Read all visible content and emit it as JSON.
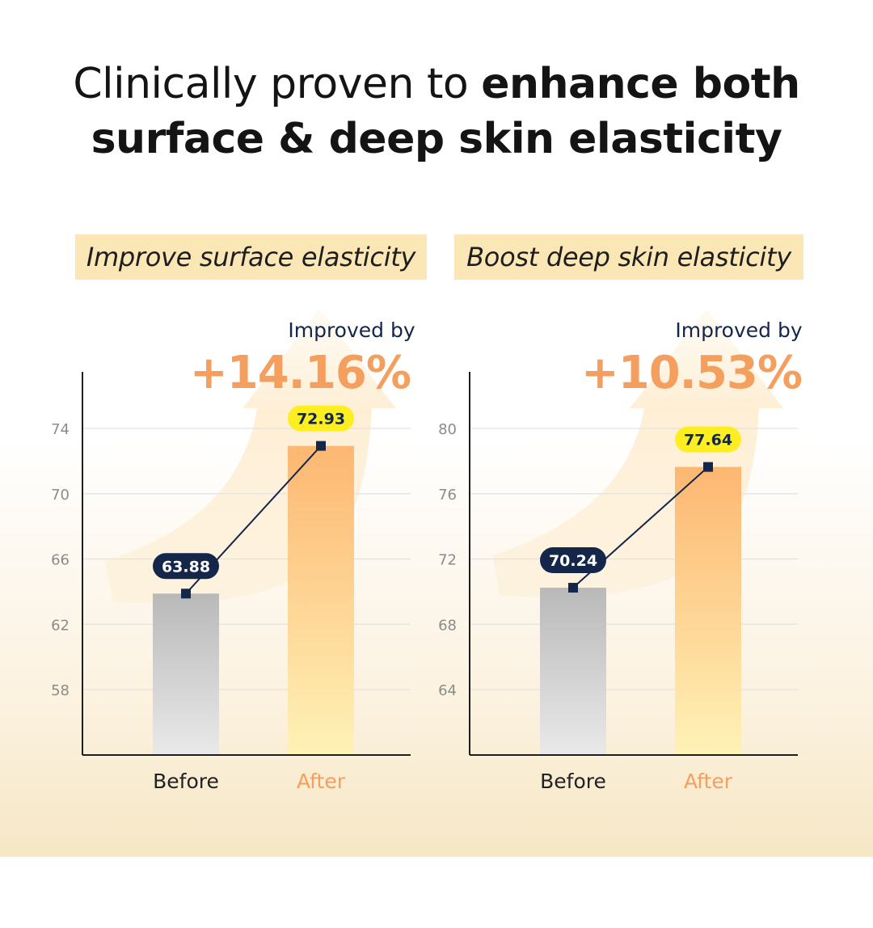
{
  "headline": {
    "line1_regular": "Clinically proven to ",
    "line1_bold": "enhance both",
    "line2_bold": "surface & deep skin elasticity"
  },
  "colors": {
    "before_bar": "#b9b9b9",
    "after_bar": "#fdb772",
    "accent_orange": "#f59f5f",
    "navy": "#14264a",
    "highlight_yellow": "#fcee21"
  },
  "chart_data": [
    {
      "type": "bar",
      "title": "Improve surface elasticity",
      "improvement_label": "Improved by",
      "improvement_value": "+14.16%",
      "categories": [
        "Before",
        "After"
      ],
      "values": [
        63.88,
        72.93
      ],
      "value_labels": [
        "63.88",
        "72.93"
      ],
      "yticks": [
        58,
        62,
        66,
        70,
        74
      ],
      "ylim": [
        54,
        78
      ],
      "grid": true
    },
    {
      "type": "bar",
      "title": "Boost deep skin elasticity",
      "improvement_label": "Improved by",
      "improvement_value": "+10.53%",
      "categories": [
        "Before",
        "After"
      ],
      "values": [
        70.24,
        77.64
      ],
      "value_labels": [
        "70.24",
        "77.64"
      ],
      "yticks": [
        64,
        68,
        72,
        76,
        80
      ],
      "ylim": [
        60,
        84
      ],
      "grid": true
    }
  ]
}
